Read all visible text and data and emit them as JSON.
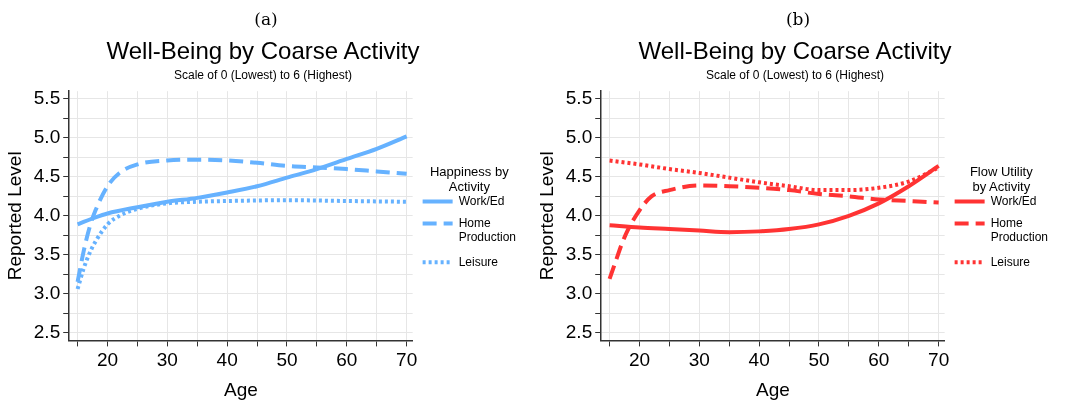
{
  "chart_data": [
    {
      "type": "line",
      "title": "Well-Being by Coarse Activity",
      "subtitle": "Scale of 0 (Lowest) to 6 (Highest)",
      "annotations": [
        "(a)"
      ],
      "xlabel": "Age",
      "ylabel": "Reported Level",
      "legend_title": "Happiness by Activity",
      "legend": "right",
      "grid": true,
      "marker": "none",
      "xlim": [
        13.6,
        71
      ],
      "xticks": [
        {
          "value": 15,
          "label": null
        },
        20,
        {
          "value": 25,
          "label": null
        },
        30,
        {
          "value": 35,
          "label": null
        },
        40,
        {
          "value": 45,
          "label": null
        },
        50,
        {
          "value": 55,
          "label": null
        },
        60,
        {
          "value": 65,
          "label": null
        },
        70
      ],
      "ylim": [
        2.4,
        5.6
      ],
      "yticks": [
        {
          "value": 2.5,
          "label": "2.5"
        },
        {
          "value": 2.75,
          "label": null
        },
        {
          "value": 3,
          "label": "3.0"
        },
        {
          "value": 3.25,
          "label": null
        },
        {
          "value": 3.5,
          "label": "3.5"
        },
        {
          "value": 3.75,
          "label": null
        },
        {
          "value": 4,
          "label": "4.0"
        },
        {
          "value": 4.25,
          "label": null
        },
        {
          "value": 4.5,
          "label": "4.5"
        },
        {
          "value": 4.75,
          "label": null
        },
        {
          "value": 5,
          "label": "5.0"
        },
        {
          "value": 5.25,
          "label": null
        },
        {
          "value": 5.5,
          "label": "5.5"
        }
      ],
      "series": [
        {
          "name": "Work/Ed",
          "color": "#66b2ff",
          "line_style": "solid",
          "x": [
            15,
            18,
            20,
            25,
            30,
            35,
            40,
            45,
            50,
            55,
            60,
            65,
            70
          ],
          "values": [
            3.89,
            3.98,
            4.03,
            4.11,
            4.18,
            4.23,
            4.3,
            4.38,
            4.49,
            4.6,
            4.73,
            4.86,
            5.02
          ]
        },
        {
          "name": "Home Production",
          "color": "#66b2ff",
          "line_style": "dashed",
          "x": [
            15,
            16,
            17,
            18,
            20,
            22,
            25,
            30,
            35,
            40,
            45,
            50,
            55,
            60,
            65,
            70
          ],
          "values": [
            3.15,
            3.54,
            3.85,
            4.07,
            4.38,
            4.55,
            4.66,
            4.71,
            4.72,
            4.71,
            4.68,
            4.64,
            4.62,
            4.6,
            4.57,
            4.54
          ]
        },
        {
          "name": "Leisure",
          "color": "#66b2ff",
          "line_style": "dotted",
          "x": [
            15,
            16,
            17,
            18,
            20,
            22,
            25,
            30,
            35,
            40,
            50,
            60,
            70
          ],
          "values": [
            3.06,
            3.32,
            3.52,
            3.67,
            3.89,
            4.0,
            4.09,
            4.16,
            4.18,
            4.19,
            4.2,
            4.19,
            4.18
          ]
        }
      ]
    },
    {
      "type": "line",
      "title": "Well-Being by Coarse Activity",
      "subtitle": "Scale of 0 (Lowest) to 6 (Highest)",
      "annotations": [
        "(b)"
      ],
      "xlabel": "Age",
      "ylabel": "Reported Level",
      "legend_title": "Flow Utility by Activity",
      "legend": "right",
      "grid": true,
      "marker": "none",
      "xlim": [
        13.6,
        71
      ],
      "xticks": [
        {
          "value": 15,
          "label": null
        },
        20,
        {
          "value": 25,
          "label": null
        },
        30,
        {
          "value": 35,
          "label": null
        },
        40,
        {
          "value": 45,
          "label": null
        },
        50,
        {
          "value": 55,
          "label": null
        },
        60,
        {
          "value": 65,
          "label": null
        },
        70
      ],
      "ylim": [
        2.4,
        5.6
      ],
      "yticks": [
        {
          "value": 2.5,
          "label": "2.5"
        },
        {
          "value": 2.75,
          "label": null
        },
        {
          "value": 3,
          "label": "3.0"
        },
        {
          "value": 3.25,
          "label": null
        },
        {
          "value": 3.5,
          "label": "3.5"
        },
        {
          "value": 3.75,
          "label": null
        },
        {
          "value": 4,
          "label": "4.0"
        },
        {
          "value": 4.25,
          "label": null
        },
        {
          "value": 4.5,
          "label": "4.5"
        },
        {
          "value": 4.75,
          "label": null
        },
        {
          "value": 5,
          "label": "5.0"
        },
        {
          "value": 5.25,
          "label": null
        },
        {
          "value": 5.5,
          "label": "5.5"
        }
      ],
      "series": [
        {
          "name": "Work/Ed",
          "color": "#ff3333",
          "line_style": "solid",
          "x": [
            15,
            20,
            25,
            30,
            35,
            40,
            45,
            50,
            55,
            60,
            65,
            70
          ],
          "values": [
            3.88,
            3.85,
            3.83,
            3.81,
            3.79,
            3.8,
            3.83,
            3.89,
            4.0,
            4.16,
            4.38,
            4.64
          ]
        },
        {
          "name": "Home Production",
          "color": "#ff3333",
          "line_style": "dashed",
          "x": [
            15,
            16,
            17,
            18,
            20,
            22,
            25,
            30,
            35,
            40,
            45,
            50,
            55,
            60,
            65,
            70
          ],
          "values": [
            3.19,
            3.41,
            3.63,
            3.81,
            4.07,
            4.25,
            4.33,
            4.39,
            4.38,
            4.36,
            4.33,
            4.28,
            4.25,
            4.21,
            4.19,
            4.17
          ]
        },
        {
          "name": "Leisure",
          "color": "#ff3333",
          "line_style": "dotted",
          "x": [
            15,
            20,
            25,
            30,
            35,
            40,
            45,
            50,
            55,
            60,
            65,
            70
          ],
          "values": [
            4.71,
            4.66,
            4.6,
            4.55,
            4.49,
            4.43,
            4.38,
            4.33,
            4.33,
            4.36,
            4.44,
            4.62
          ]
        }
      ]
    }
  ]
}
